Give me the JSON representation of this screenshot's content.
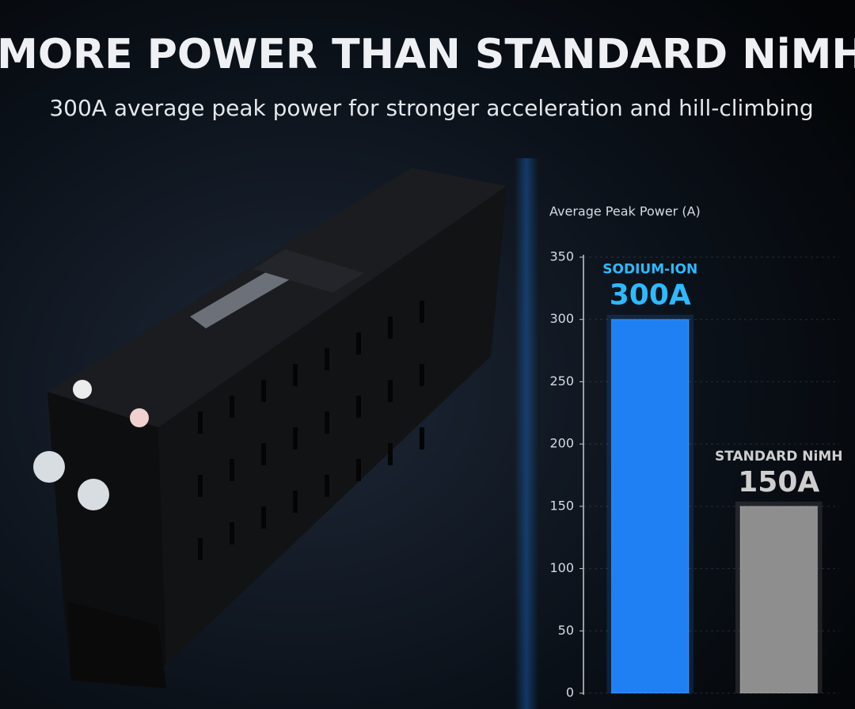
{
  "chart_data": {
    "type": "bar",
    "title": "MORE POWER THAN STANDARD NiMH",
    "subtitle": "300A average peak power for stronger acceleration and hill-climbing",
    "y_label": "Average Peak Power (A)",
    "categories": [
      "SODIUM-ION",
      "STANDARD NiMH"
    ],
    "values": [
      300,
      150
    ],
    "value_labels": [
      "300A",
      "150A"
    ],
    "colors": [
      "#1f80f4",
      "#8e8e8e"
    ],
    "ylim": [
      0,
      350
    ],
    "yticks": [
      0,
      50,
      100,
      150,
      200,
      250,
      300,
      350
    ],
    "grid": true
  }
}
